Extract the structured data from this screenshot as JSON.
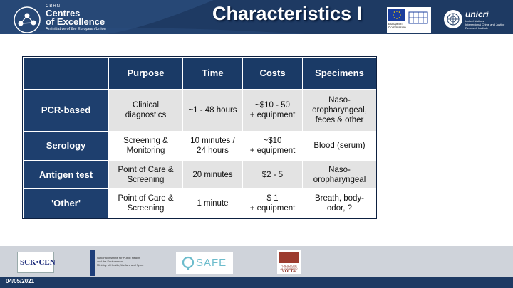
{
  "header": {
    "brand": {
      "cbrn": "CBRN",
      "line1": "Centres",
      "line2": "of Excellence",
      "tagline": "An initiative of the European Union"
    },
    "title": "Characteristics I",
    "ec_logo_text": [
      "European",
      "Commission"
    ],
    "unicri_name": "unicri",
    "unicri_sub": [
      "United Nations",
      "Interregional Crime and Justice",
      "Research Institute"
    ]
  },
  "table": {
    "headers": [
      "Purpose",
      "Time",
      "Costs",
      "Specimens"
    ],
    "rows": [
      {
        "label": "PCR-based",
        "purpose": [
          "Clinical",
          "diagnostics"
        ],
        "time": [
          "~1 - 48 hours"
        ],
        "costs": [
          "~$10 - 50",
          "+ equipment"
        ],
        "specimens": [
          "Naso-",
          "oropharyngeal,",
          "feces & other"
        ]
      },
      {
        "label": "Serology",
        "purpose": [
          "Screening &",
          "Monitoring"
        ],
        "time": [
          "10 minutes /",
          "24 hours"
        ],
        "costs": [
          "~$10",
          "+ equipment"
        ],
        "specimens": [
          "Blood (serum)"
        ]
      },
      {
        "label": "Antigen test",
        "purpose": [
          "Point of Care &",
          "Screening"
        ],
        "time": [
          "20 minutes"
        ],
        "costs": [
          "$2 - 5"
        ],
        "specimens": [
          "Naso-",
          "oropharyngeal"
        ]
      },
      {
        "label": "'Other'",
        "purpose": [
          "Point of Care &",
          "Screening"
        ],
        "time": [
          "1 minute"
        ],
        "costs": [
          "$ 1",
          "+ equipment"
        ],
        "specimens": [
          "Breath, body-",
          "odor, ?"
        ]
      }
    ]
  },
  "footer": {
    "date": "04/05/2021",
    "sck_logo": "SCK•CEN",
    "rivm_text": [
      "National Institute for Public Health",
      "and the Environment",
      "Ministry of Health, Welfare and Sport"
    ],
    "safe_logo": "SAFE",
    "volta_text": [
      "FONDAZIONE",
      "ALESSANDRO"
    ],
    "volta_big": "VOLTA"
  },
  "colors": {
    "header_bg": "#1e3a63",
    "table_header_bg": "#1a3a66",
    "row_alt_bg": "#e3e3e3",
    "footer_band": "#cfd3da"
  }
}
